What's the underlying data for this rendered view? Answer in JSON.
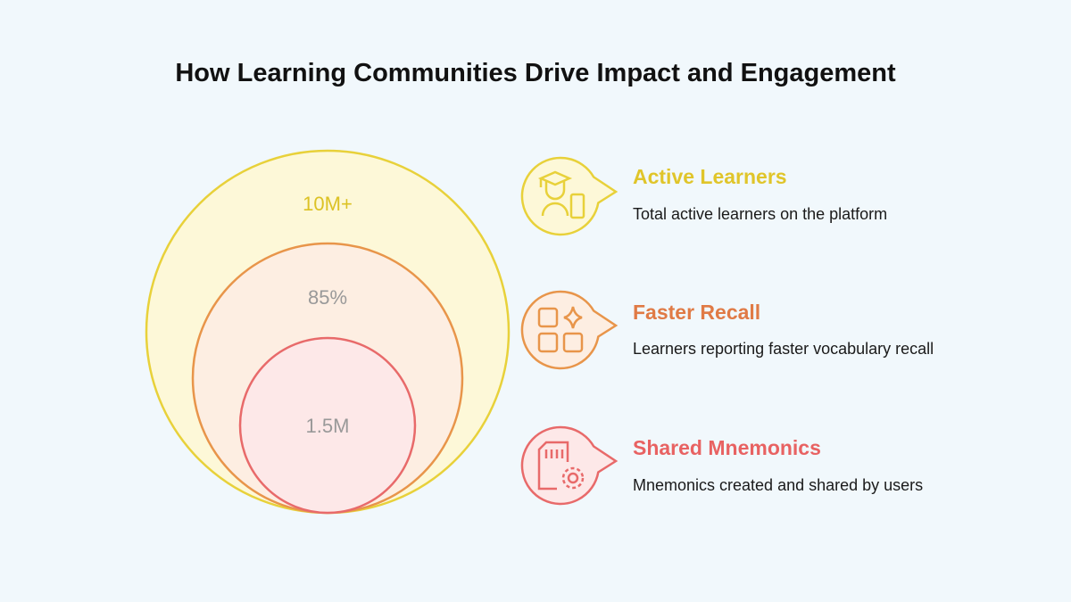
{
  "header": {
    "title": "How Learning Communities Drive Impact and Engagement"
  },
  "circles": [
    {
      "label": "10M+"
    },
    {
      "label": "85%"
    },
    {
      "label": "1.5M"
    }
  ],
  "items": [
    {
      "title": "Active Learners",
      "description": "Total active learners on the platform"
    },
    {
      "title": "Faster Recall",
      "description": "Learners reporting faster vocabulary recall"
    },
    {
      "title": "Shared Mnemonics",
      "description": "Mnemonics created and shared by users"
    }
  ]
}
